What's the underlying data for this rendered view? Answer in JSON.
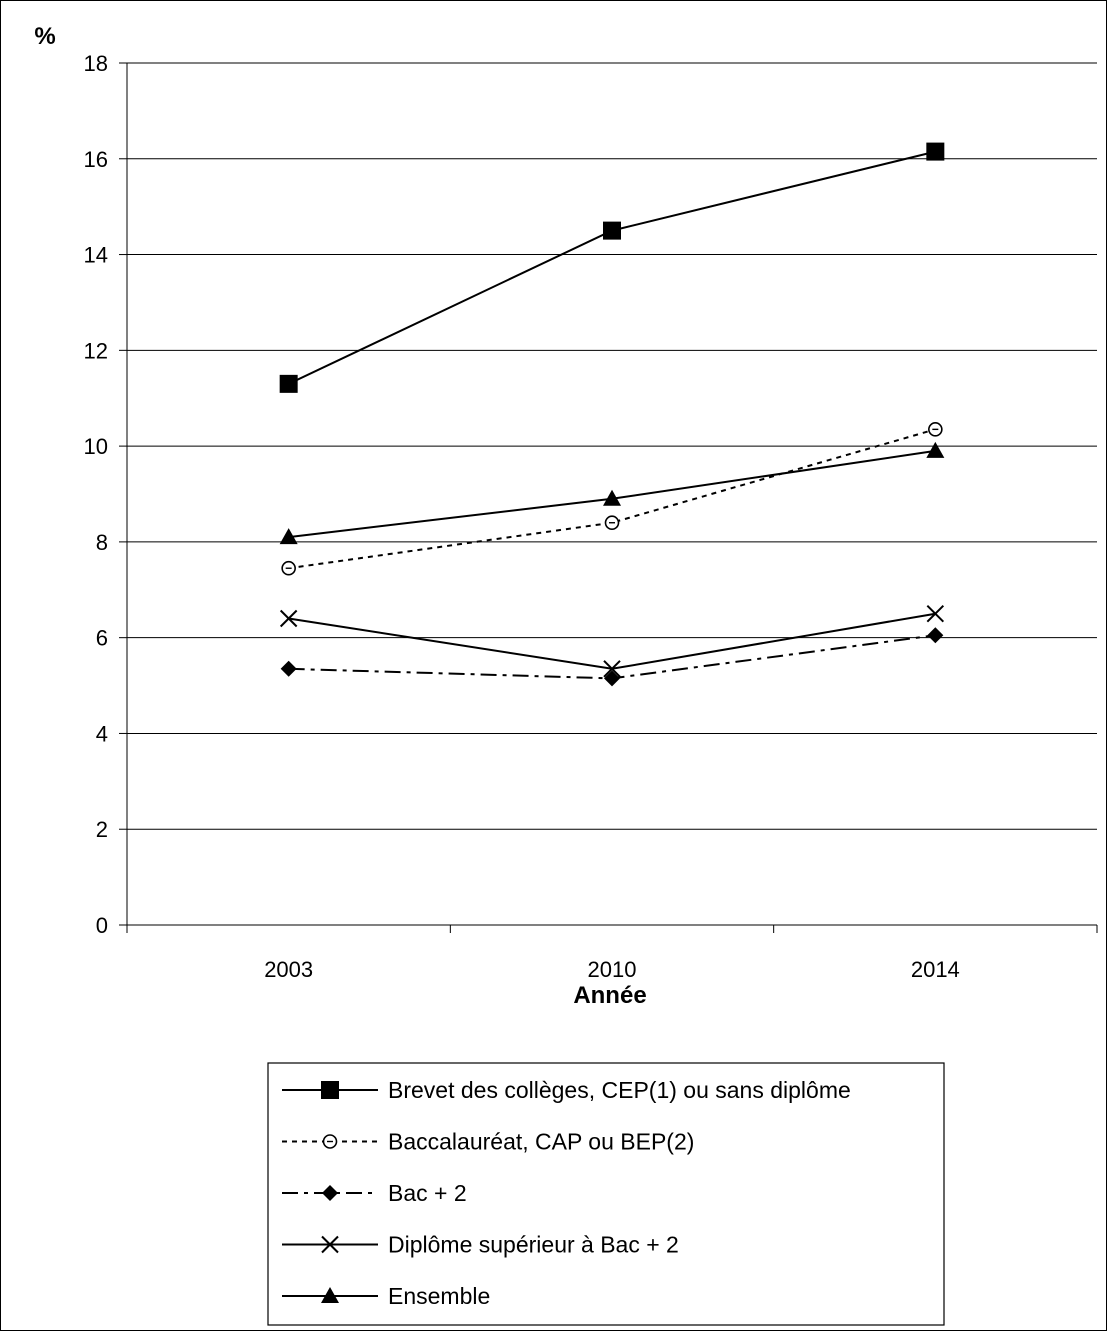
{
  "chart_data": {
    "type": "line",
    "title": "",
    "xlabel": "Année",
    "ylabel": "%",
    "categories": [
      "2003",
      "2010",
      "2014"
    ],
    "ylim": [
      0,
      18
    ],
    "yticks": [
      "0",
      "2",
      "4",
      "6",
      "8",
      "10",
      "12",
      "14",
      "16",
      "18"
    ],
    "grid": true,
    "legend_position": "bottom",
    "series": [
      {
        "name": "Brevet des collèges, CEP(1) ou sans diplôme",
        "values": [
          11.3,
          14.5,
          16.15
        ],
        "marker": "square",
        "line": "solid"
      },
      {
        "name": "Baccalauréat, CAP ou BEP(2)",
        "values": [
          7.45,
          8.4,
          10.35
        ],
        "marker": "circle-open",
        "line": "dotted"
      },
      {
        "name": "Bac + 2",
        "values": [
          5.35,
          5.15,
          6.05
        ],
        "marker": "diamond",
        "line": "dashdot"
      },
      {
        "name": "Diplôme supérieur à Bac + 2",
        "values": [
          6.4,
          5.35,
          6.5
        ],
        "marker": "x",
        "line": "solid"
      },
      {
        "name": "Ensemble",
        "values": [
          8.1,
          8.9,
          9.9
        ],
        "marker": "triangle",
        "line": "solid"
      }
    ]
  }
}
